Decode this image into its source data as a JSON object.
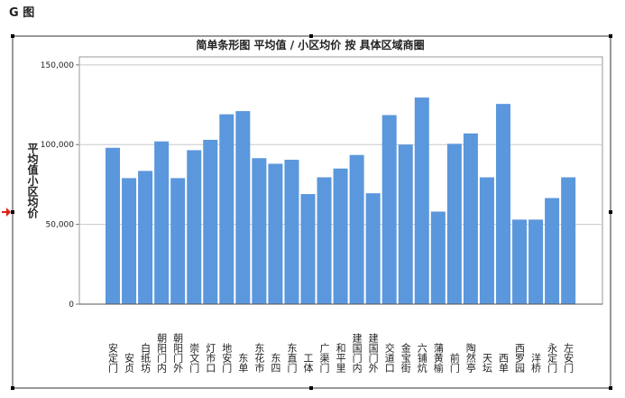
{
  "header": {
    "title": "G 图"
  },
  "chart_data": {
    "type": "bar",
    "title": "简单条形图 平均值 / 小区均价 按 具体区域商圈",
    "y_label": "平均值小区均价",
    "categories": [
      "安定门",
      "安贞",
      "白纸坊",
      "朝阳门内",
      "朝阳门外",
      "崇文门",
      "灯市口",
      "地安门",
      "东单",
      "东花市",
      "东四",
      "东直门",
      "工体",
      "广渠门",
      "和平里",
      "建国门内",
      "建国门外",
      "交道口",
      "金宝街",
      "六铺炕",
      "蒲黄榆",
      "前门",
      "陶然亭",
      "天坛",
      "西单",
      "西罗园",
      "洋桥",
      "永定门",
      "左安门"
    ],
    "values": [
      98000,
      79000,
      83500,
      102000,
      79000,
      96500,
      103000,
      119000,
      121000,
      91500,
      88000,
      90500,
      69000,
      79500,
      85000,
      93500,
      69500,
      118500,
      100000,
      129500,
      58000,
      100500,
      107000,
      79500,
      125500,
      53000,
      53000,
      66500,
      79500
    ],
    "color": "#5b97dc",
    "ylim": [
      0,
      155000
    ],
    "yticks": [
      0,
      {
        "value": 50000,
        "label": "50,000"
      },
      {
        "value": 100000,
        "label": "100,000"
      },
      {
        "value": 150000,
        "label": "150,000"
      }
    ],
    "grid": true
  }
}
